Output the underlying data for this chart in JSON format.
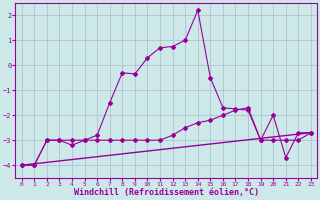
{
  "title": "",
  "xlabel": "Windchill (Refroidissement éolien,°C)",
  "background_color": "#cce8e8",
  "line_color": "#990099",
  "grid_color": "#aabbcc",
  "xlim": [
    -0.5,
    23.5
  ],
  "ylim": [
    -4.5,
    2.5
  ],
  "yticks": [
    -4,
    -3,
    -2,
    -1,
    0,
    1,
    2
  ],
  "xticks": [
    0,
    1,
    2,
    3,
    4,
    5,
    6,
    7,
    8,
    9,
    10,
    11,
    12,
    13,
    14,
    15,
    16,
    17,
    18,
    19,
    20,
    21,
    22,
    23
  ],
  "series1_x": [
    0,
    1,
    2,
    3,
    4,
    5,
    6,
    7,
    8,
    9,
    10,
    11,
    12,
    13,
    14,
    15,
    16,
    17,
    18,
    19,
    20,
    21,
    22,
    23
  ],
  "series1_y": [
    -4.0,
    -4.0,
    -3.0,
    -3.0,
    -3.2,
    -3.0,
    -2.8,
    -1.5,
    -0.3,
    -0.35,
    0.3,
    0.7,
    0.75,
    1.0,
    2.2,
    -0.5,
    -1.7,
    -1.75,
    -1.8,
    -3.0,
    -2.0,
    -3.7,
    -2.7,
    -2.7
  ],
  "series2_x": [
    0,
    1,
    2,
    3,
    4,
    5,
    6,
    7,
    8,
    9,
    10,
    11,
    12,
    13,
    14,
    15,
    16,
    17,
    18,
    19,
    20,
    21,
    22,
    23
  ],
  "series2_y": [
    -4.0,
    -4.0,
    -3.0,
    -3.0,
    -3.0,
    -3.0,
    -3.0,
    -3.0,
    -3.0,
    -3.0,
    -3.0,
    -3.0,
    -2.8,
    -2.5,
    -2.3,
    -2.2,
    -2.0,
    -1.8,
    -1.7,
    -3.0,
    -3.0,
    -3.0,
    -3.0,
    -2.7
  ],
  "series3_x": [
    0,
    23
  ],
  "series3_y": [
    -4.0,
    -2.7
  ]
}
